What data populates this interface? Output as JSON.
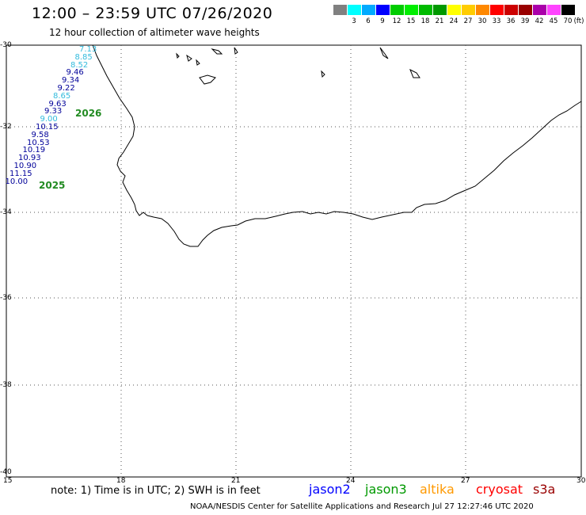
{
  "header": {
    "title": "12:00 – 23:59 UTC 07/26/2020",
    "subtitle": "12 hour collection of altimeter wave heights"
  },
  "color_scale": {
    "unit": "(ft)",
    "swatches": [
      {
        "label": "",
        "color": "#808080"
      },
      {
        "label": "3",
        "color": "#00ffff"
      },
      {
        "label": "6",
        "color": "#00aaff"
      },
      {
        "label": "9",
        "color": "#0000ff"
      },
      {
        "label": "12",
        "color": "#00cc00"
      },
      {
        "label": "15",
        "color": "#00ee00"
      },
      {
        "label": "18",
        "color": "#00bb00"
      },
      {
        "label": "21",
        "color": "#009900"
      },
      {
        "label": "24",
        "color": "#ffff00"
      },
      {
        "label": "27",
        "color": "#ffcc00"
      },
      {
        "label": "30",
        "color": "#ff8800"
      },
      {
        "label": "33",
        "color": "#ff0000"
      },
      {
        "label": "36",
        "color": "#cc0000"
      },
      {
        "label": "39",
        "color": "#990000"
      },
      {
        "label": "42",
        "color": "#aa00aa"
      },
      {
        "label": "45",
        "color": "#ff44ff"
      },
      {
        "label": "70",
        "color": "#000000"
      }
    ]
  },
  "map": {
    "lat_labels": [
      "-30",
      "-32",
      "-34",
      "-36",
      "-38",
      "-40"
    ],
    "lon_labels": [
      "15",
      "18",
      "21",
      "24",
      "27",
      "30"
    ],
    "wave_heights": [
      {
        "v": "7.13",
        "c": "#33bbdd"
      },
      {
        "v": "8.85",
        "c": "#33bbdd"
      },
      {
        "v": "8.52",
        "c": "#33bbdd"
      },
      {
        "v": "9.46",
        "c": "#000099"
      },
      {
        "v": "9.34",
        "c": "#000099"
      },
      {
        "v": "9.22",
        "c": "#000099"
      },
      {
        "v": "8.65",
        "c": "#33bbdd"
      },
      {
        "v": "9.63",
        "c": "#000099"
      },
      {
        "v": "9.33",
        "c": "#000099"
      },
      {
        "v": "9.00",
        "c": "#33bbdd"
      },
      {
        "v": "10.15",
        "c": "#000099"
      },
      {
        "v": "9.58",
        "c": "#000099"
      },
      {
        "v": "10.53",
        "c": "#000099"
      },
      {
        "v": "10.19",
        "c": "#000099"
      },
      {
        "v": "10.93",
        "c": "#000099"
      },
      {
        "v": "10.90",
        "c": "#000099"
      },
      {
        "v": "11.15",
        "c": "#000099"
      },
      {
        "v": "10.00",
        "c": "#000099"
      }
    ],
    "pass_labels": [
      "2026",
      "2025"
    ]
  },
  "footer": {
    "note": "note: 1) Time is in UTC; 2) SWH is in feet",
    "satellites": [
      {
        "name": "jason2",
        "color": "#0000ff"
      },
      {
        "name": "jason3",
        "color": "#009900"
      },
      {
        "name": "altika",
        "color": "#ff9900"
      },
      {
        "name": "cryosat",
        "color": "#ff0000"
      },
      {
        "name": "s3a",
        "color": "#990000"
      }
    ],
    "credit": "NOAA/NESDIS Center for Satellite Applications and Research   Jul 27 12:27:46 UTC 2020"
  }
}
